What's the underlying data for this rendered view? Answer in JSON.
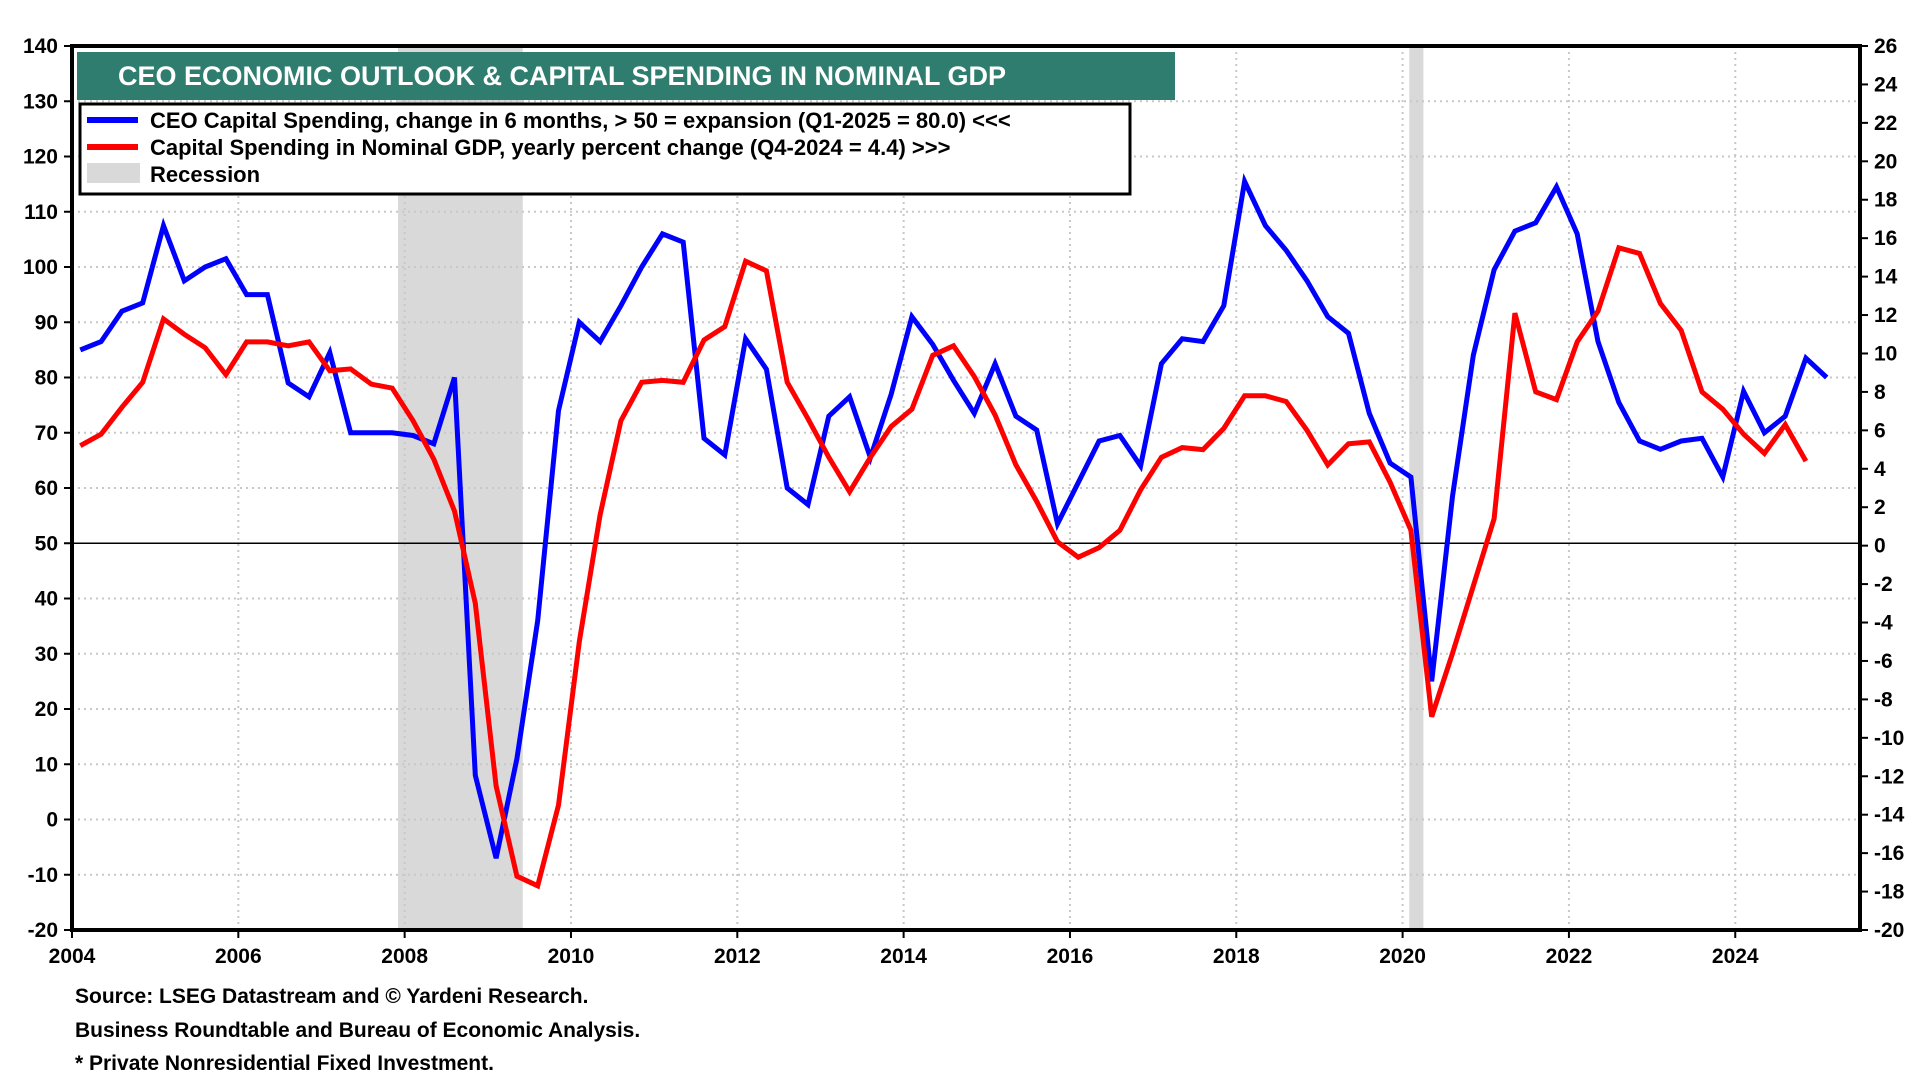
{
  "chart_data": {
    "type": "line",
    "title": "CEO ECONOMIC OUTLOOK & CAPITAL SPENDING IN NOMINAL GDP",
    "xlabel": "",
    "ylabel_left": "",
    "ylabel_right": "",
    "x_ticks": [
      "2004",
      "2006",
      "2008",
      "2010",
      "2012",
      "2014",
      "2016",
      "2018",
      "2020",
      "2022",
      "2024"
    ],
    "x_range": [
      2004,
      2025.5
    ],
    "y_left": {
      "range": [
        -20,
        140
      ],
      "ticks": [
        140,
        130,
        120,
        110,
        100,
        90,
        80,
        70,
        60,
        50,
        40,
        30,
        20,
        10,
        0,
        -10,
        -20
      ]
    },
    "y_right": {
      "range": [
        -20,
        26
      ],
      "ticks": [
        26,
        24,
        22,
        20,
        18,
        16,
        14,
        12,
        10,
        8,
        6,
        4,
        2,
        0,
        -2,
        -4,
        -6,
        -8,
        -10,
        -12,
        -14,
        -16,
        -18,
        -20
      ]
    },
    "reference_line": {
      "left_value": 50,
      "right_value": 0
    },
    "grid": true,
    "legend_position": "top-left",
    "legend": [
      {
        "label": "CEO Capital Spending, change in 6 months, > 50 = expansion (Q1-2025 = 80.0) <<<",
        "color": "#0000ff",
        "kind": "line"
      },
      {
        "label": "Capital Spending in Nominal GDP, yearly percent change (Q4-2024 = 4.4) >>>",
        "color": "#ff0000",
        "kind": "line"
      },
      {
        "label": "Recession",
        "color": "#d9d9d9",
        "kind": "area"
      }
    ],
    "recessions": [
      {
        "start": 2007.92,
        "end": 2009.42
      },
      {
        "start": 2020.08,
        "end": 2020.25
      }
    ],
    "series": [
      {
        "name": "CEO Capital Spending, change in 6 months",
        "axis": "left",
        "color": "#0000ff",
        "start": "2004-Q1",
        "frequency": "quarterly",
        "values": [
          85,
          86.5,
          92,
          93.5,
          107.5,
          97.5,
          100,
          101.5,
          95,
          95,
          79,
          76.5,
          84.5,
          70,
          70,
          70,
          69.5,
          68,
          80,
          8,
          -7,
          11,
          36,
          74,
          90,
          86.5,
          93,
          100,
          106,
          104.5,
          69,
          66,
          87,
          81.5,
          60,
          57,
          73,
          76.5,
          65.5,
          77,
          91,
          86,
          79.5,
          73.5,
          82.5,
          73,
          70.5,
          53.5,
          61,
          68.5,
          69.5,
          64,
          82.5,
          87,
          86.5,
          93,
          115.5,
          107.5,
          103,
          97.5,
          91,
          88,
          73.5,
          64.5,
          62,
          25,
          58.5,
          84,
          99.5,
          106.5,
          108,
          114.5,
          106,
          86.5,
          75.5,
          68.5,
          67,
          68.5,
          69,
          62,
          77.5,
          70,
          73,
          83.5,
          80
        ]
      },
      {
        "name": "Capital Spending in Nominal GDP, yearly percent change",
        "axis": "right",
        "color": "#ff0000",
        "start": "2004-Q1",
        "frequency": "quarterly",
        "values": [
          5.2,
          5.8,
          7.2,
          8.5,
          11.8,
          11,
          10.3,
          8.9,
          10.6,
          10.6,
          10.4,
          10.6,
          9.1,
          9.2,
          8.4,
          8.2,
          6.5,
          4.5,
          1.8,
          -3,
          -12.5,
          -17.2,
          -17.7,
          -13.5,
          -5,
          1.6,
          6.5,
          8.5,
          8.6,
          8.5,
          10.7,
          11.4,
          14.8,
          14.3,
          8.5,
          6.6,
          4.6,
          2.8,
          4.6,
          6.2,
          7.1,
          9.9,
          10.4,
          8.8,
          6.8,
          4.2,
          2.3,
          0.2,
          -0.6,
          -0.1,
          0.8,
          2.9,
          4.6,
          5.1,
          5.0,
          6.1,
          7.8,
          7.8,
          7.5,
          6.0,
          4.2,
          5.3,
          5.4,
          3.3,
          0.8,
          -8.9,
          -5.6,
          -2.1,
          1.4,
          12.1,
          8.0,
          7.6,
          10.6,
          12.2,
          15.5,
          15.2,
          12.6,
          11.2,
          8.0,
          7.1,
          5.8,
          4.8,
          6.3,
          4.4
        ]
      }
    ]
  },
  "colors": {
    "title_bg": "#2e7d6e",
    "title_text": "#ffffff",
    "recession": "#d9d9d9",
    "grid": "#c8c8c8"
  },
  "footer": {
    "line1": "Source: LSEG Datastream and © Yardeni Research.",
    "line2": "Business Roundtable and Bureau of Economic Analysis.",
    "line3": "* Private Nonresidential Fixed Investment."
  }
}
